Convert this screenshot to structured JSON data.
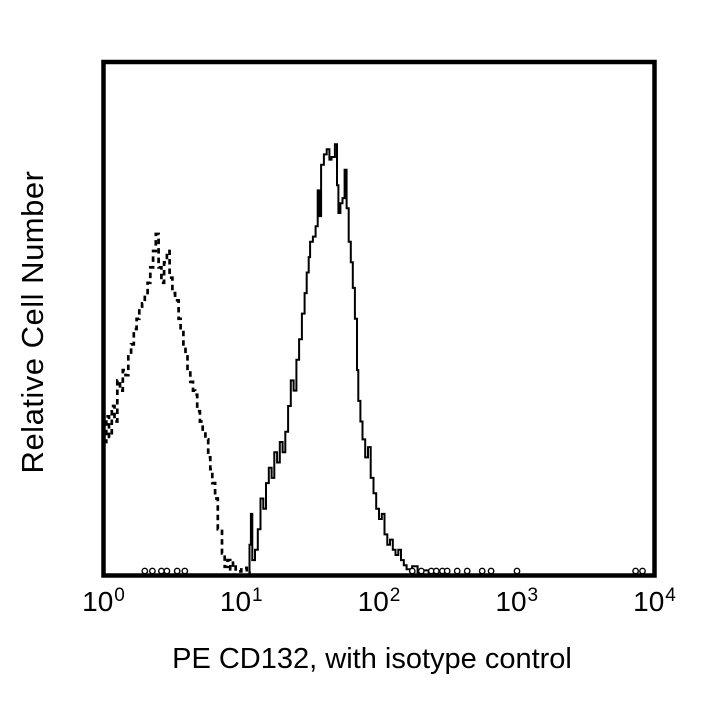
{
  "chart_data": {
    "type": "line",
    "subtype": "flow-cytometry-histogram-overlay",
    "title": "",
    "xlabel": "PE CD132, with isotype control",
    "ylabel": "Relative Cell Number",
    "x_scale": "log10",
    "x_range": [
      1,
      10000
    ],
    "x_range_decades": [
      0,
      4
    ],
    "y_axis_ticks": "none",
    "grid": false,
    "legend": "none",
    "frame_color": "#000000",
    "background_color": "#ffffff",
    "x_ticks": [
      {
        "base": "10",
        "exp": "0",
        "decade": 0
      },
      {
        "base": "10",
        "exp": "1",
        "decade": 1
      },
      {
        "base": "10",
        "exp": "2",
        "decade": 2
      },
      {
        "base": "10",
        "exp": "3",
        "decade": 3
      },
      {
        "base": "10",
        "exp": "4",
        "decade": 4
      }
    ],
    "series": [
      {
        "name": "isotype control",
        "line_style": "dashed",
        "color": "#000000",
        "peak_x_value": 2.4,
        "peak_height_fraction": 0.665,
        "points_decade_heightfrac": [
          [
            0.0,
            0.26
          ],
          [
            0.02,
            0.31
          ],
          [
            0.04,
            0.27
          ],
          [
            0.06,
            0.33
          ],
          [
            0.08,
            0.3
          ],
          [
            0.1,
            0.38
          ],
          [
            0.12,
            0.36
          ],
          [
            0.14,
            0.4
          ],
          [
            0.16,
            0.39
          ],
          [
            0.18,
            0.43
          ],
          [
            0.2,
            0.45
          ],
          [
            0.22,
            0.48
          ],
          [
            0.24,
            0.5
          ],
          [
            0.26,
            0.52
          ],
          [
            0.28,
            0.53
          ],
          [
            0.3,
            0.545
          ],
          [
            0.32,
            0.57
          ],
          [
            0.34,
            0.6
          ],
          [
            0.36,
            0.632
          ],
          [
            0.38,
            0.665
          ],
          [
            0.4,
            0.6
          ],
          [
            0.42,
            0.57
          ],
          [
            0.44,
            0.61
          ],
          [
            0.46,
            0.632
          ],
          [
            0.48,
            0.58
          ],
          [
            0.5,
            0.55
          ],
          [
            0.52,
            0.536
          ],
          [
            0.545,
            0.5
          ],
          [
            0.56,
            0.478
          ],
          [
            0.58,
            0.45
          ],
          [
            0.595,
            0.43
          ],
          [
            0.61,
            0.4
          ],
          [
            0.63,
            0.377
          ],
          [
            0.65,
            0.36
          ],
          [
            0.665,
            0.352
          ],
          [
            0.68,
            0.32
          ],
          [
            0.7,
            0.3
          ],
          [
            0.72,
            0.28
          ],
          [
            0.74,
            0.265
          ],
          [
            0.76,
            0.23
          ],
          [
            0.775,
            0.207
          ],
          [
            0.79,
            0.18
          ],
          [
            0.81,
            0.15
          ],
          [
            0.83,
            0.09
          ],
          [
            0.86,
            0.043
          ],
          [
            0.88,
            0.017
          ],
          [
            0.9,
            0.03
          ],
          [
            0.92,
            0.012
          ],
          [
            0.94,
            0.025
          ],
          [
            0.96,
            0.008
          ],
          [
            1.0,
            0.015
          ],
          [
            1.04,
            0.005
          ],
          [
            1.06,
            0.0
          ]
        ]
      },
      {
        "name": "PE CD132",
        "line_style": "solid",
        "color": "#000000",
        "peak_x_value": 48,
        "peak_height_fraction": 0.84,
        "points_decade_heightfrac": [
          [
            1.05,
            0.0
          ],
          [
            1.06,
            0.06
          ],
          [
            1.07,
            0.12
          ],
          [
            1.08,
            0.03
          ],
          [
            1.1,
            0.05
          ],
          [
            1.12,
            0.09
          ],
          [
            1.14,
            0.15
          ],
          [
            1.16,
            0.13
          ],
          [
            1.18,
            0.18
          ],
          [
            1.2,
            0.21
          ],
          [
            1.22,
            0.19
          ],
          [
            1.24,
            0.24
          ],
          [
            1.26,
            0.22
          ],
          [
            1.28,
            0.26
          ],
          [
            1.3,
            0.24
          ],
          [
            1.32,
            0.28
          ],
          [
            1.34,
            0.33
          ],
          [
            1.36,
            0.38
          ],
          [
            1.38,
            0.36
          ],
          [
            1.4,
            0.42
          ],
          [
            1.42,
            0.46
          ],
          [
            1.44,
            0.51
          ],
          [
            1.46,
            0.55
          ],
          [
            1.475,
            0.59
          ],
          [
            1.49,
            0.62
          ],
          [
            1.5,
            0.65
          ],
          [
            1.52,
            0.66
          ],
          [
            1.54,
            0.68
          ],
          [
            1.555,
            0.75
          ],
          [
            1.565,
            0.7
          ],
          [
            1.58,
            0.8
          ],
          [
            1.6,
            0.82
          ],
          [
            1.62,
            0.83
          ],
          [
            1.64,
            0.81
          ],
          [
            1.655,
            0.815
          ],
          [
            1.68,
            0.84
          ],
          [
            1.695,
            0.76
          ],
          [
            1.705,
            0.706
          ],
          [
            1.72,
            0.725
          ],
          [
            1.735,
            0.735
          ],
          [
            1.75,
            0.79
          ],
          [
            1.765,
            0.715
          ],
          [
            1.78,
            0.65
          ],
          [
            1.795,
            0.61
          ],
          [
            1.81,
            0.56
          ],
          [
            1.825,
            0.5
          ],
          [
            1.84,
            0.4
          ],
          [
            1.85,
            0.34
          ],
          [
            1.865,
            0.3
          ],
          [
            1.88,
            0.265
          ],
          [
            1.9,
            0.23
          ],
          [
            1.92,
            0.25
          ],
          [
            1.94,
            0.19
          ],
          [
            1.96,
            0.16
          ],
          [
            1.98,
            0.13
          ],
          [
            2.0,
            0.11
          ],
          [
            2.02,
            0.12
          ],
          [
            2.04,
            0.08
          ],
          [
            2.06,
            0.06
          ],
          [
            2.08,
            0.07
          ],
          [
            2.1,
            0.05
          ],
          [
            2.12,
            0.04
          ],
          [
            2.14,
            0.05
          ],
          [
            2.16,
            0.03
          ],
          [
            2.18,
            0.02
          ],
          [
            2.2,
            0.012
          ],
          [
            2.24,
            0.018
          ],
          [
            2.28,
            0.006
          ],
          [
            2.32,
            0.01
          ],
          [
            2.36,
            0.0
          ]
        ]
      }
    ],
    "baseline_event_markers": {
      "shape": "open-circle",
      "color": "#000000",
      "x_decades": [
        0.3,
        0.355,
        0.42,
        0.46,
        0.535,
        0.59,
        2.242,
        2.307,
        2.38,
        2.416,
        2.46,
        2.495,
        2.568,
        2.64,
        2.749,
        2.814,
        3.002,
        3.863,
        3.913
      ]
    }
  }
}
